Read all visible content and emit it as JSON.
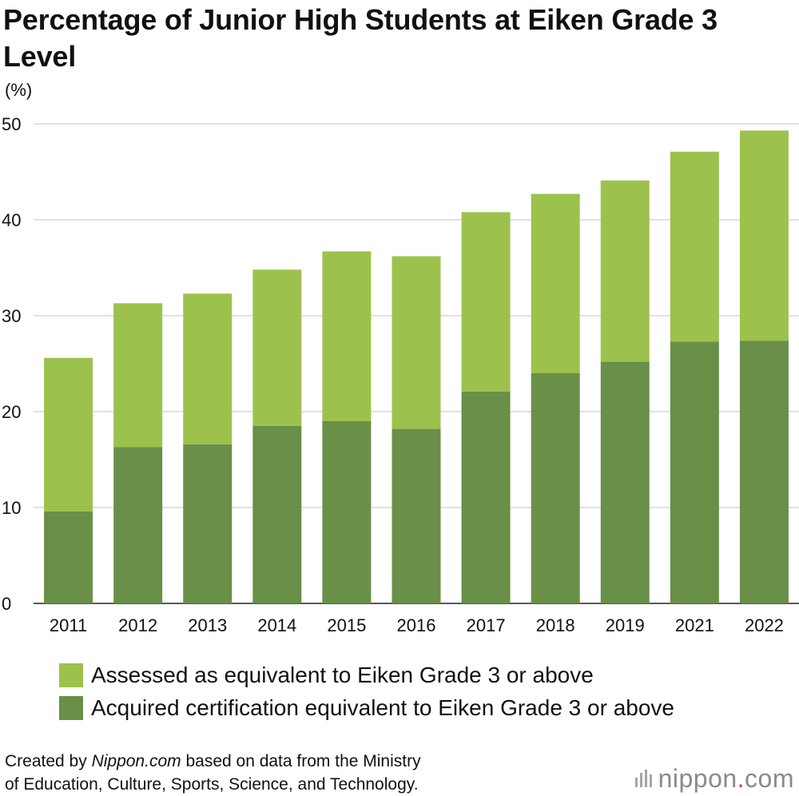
{
  "title": "Percentage of Junior High Students at Eiken Grade 3 Level",
  "unit_label": "(%)",
  "chart_data": {
    "type": "bar",
    "stacked": true,
    "title": "Percentage of Junior High Students at Eiken Grade 3 Level",
    "xlabel": "",
    "ylabel": "(%)",
    "ylim": [
      0,
      50
    ],
    "yticks": [
      0,
      10,
      20,
      30,
      40,
      50
    ],
    "grid": true,
    "legend_position": "bottom",
    "categories": [
      "2011",
      "2012",
      "2013",
      "2014",
      "2015",
      "2016",
      "2017",
      "2018",
      "2019",
      "2021",
      "2022"
    ],
    "series": [
      {
        "name": "Acquired certification equivalent to Eiken Grade 3 or above",
        "color": "#6a8f48",
        "values": [
          9.6,
          16.3,
          16.6,
          18.5,
          19.0,
          18.2,
          22.1,
          24.0,
          25.2,
          27.3,
          27.4
        ]
      },
      {
        "name": "Assessed as equivalent to Eiken Grade 3 or above",
        "color": "#9cc24d",
        "values": [
          16.0,
          15.0,
          15.7,
          16.3,
          17.7,
          18.0,
          18.7,
          18.7,
          18.9,
          19.8,
          21.9
        ]
      }
    ]
  },
  "legend": [
    {
      "label": "Assessed as equivalent to Eiken Grade 3 or above",
      "color": "#9cc24d"
    },
    {
      "label": "Acquired certification equivalent to Eiken Grade 3 or above",
      "color": "#6a8f48"
    }
  ],
  "footnote": {
    "prefix": "Created by ",
    "source": "Nippon.com",
    "line1_rest": " based on data from the Ministry",
    "line2": "of Education, Culture, Sports, Science, and Technology."
  },
  "brand": {
    "name": "nippon",
    "dot": ".",
    "tld": "com"
  }
}
